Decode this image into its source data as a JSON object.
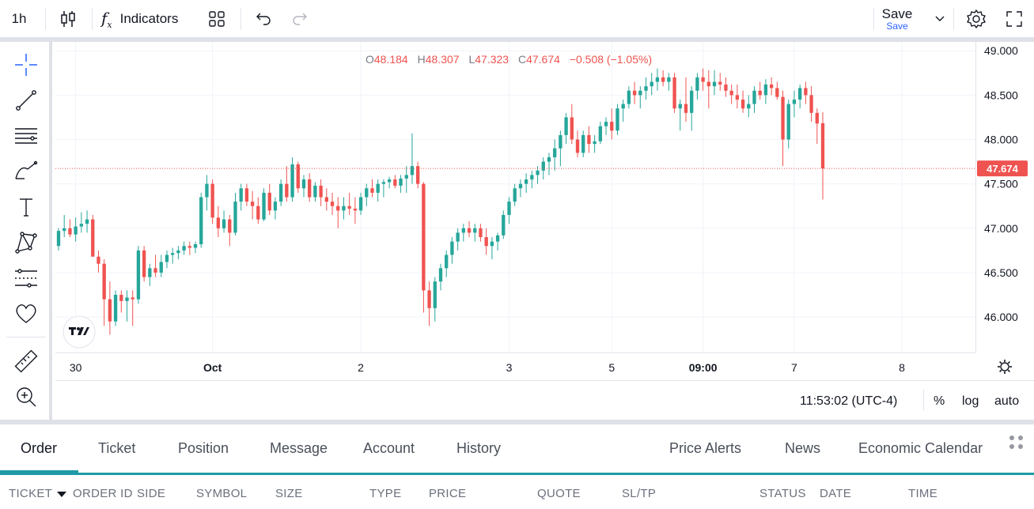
{
  "toolbar": {
    "interval": "1h",
    "indicators_label": "Indicators",
    "save_label": "Save",
    "save_sub": "Save"
  },
  "legend": {
    "o_label": "O",
    "o_value": "48.184",
    "h_label": "H",
    "h_value": "48.307",
    "l_label": "L",
    "l_value": "47.323",
    "c_label": "C",
    "c_value": "47.674",
    "change": "−0.508 (−1.05%)"
  },
  "price_scale": {
    "ticks": [
      "49.000",
      "48.500",
      "48.000",
      "47.500",
      "47.000",
      "46.500",
      "46.000"
    ],
    "last_price": "47.674"
  },
  "time_scale": {
    "ticks": [
      "30",
      "Oct",
      "2",
      "3",
      "5",
      "09:00",
      "7",
      "8"
    ]
  },
  "status": {
    "clock": "11:53:02 (UTC-4)",
    "percent": "%",
    "log": "log",
    "auto": "auto"
  },
  "tabs": [
    "Order",
    "Ticket",
    "Position",
    "Message",
    "Account",
    "History",
    "Price Alerts",
    "News",
    "Economic Calendar"
  ],
  "columns": [
    "TICKET",
    "ORDER ID",
    "SIDE",
    "SYMBOL",
    "SIZE",
    "TYPE",
    "PRICE",
    "QUOTE",
    "SL/TP",
    "STATUS",
    "DATE",
    "TIME"
  ],
  "colors": {
    "up": "#26a69a",
    "down": "#ef5350",
    "accent": "#1e9aa6",
    "grid": "#f0f3fa"
  },
  "chart_data": {
    "type": "candlestick",
    "ylim": [
      45.6,
      49.1
    ],
    "last": 47.674,
    "candles": [
      [
        46.8,
        47.0,
        46.75,
        46.97
      ],
      [
        46.97,
        47.15,
        46.9,
        47.0
      ],
      [
        47.0,
        47.1,
        46.9,
        46.93
      ],
      [
        46.93,
        47.12,
        46.85,
        47.02
      ],
      [
        47.02,
        47.18,
        46.95,
        47.05
      ],
      [
        47.05,
        47.2,
        46.95,
        47.1
      ],
      [
        47.1,
        47.15,
        46.7,
        46.68
      ],
      [
        46.68,
        46.75,
        46.5,
        46.6
      ],
      [
        46.6,
        46.65,
        45.9,
        46.2
      ],
      [
        46.2,
        46.4,
        45.8,
        45.95
      ],
      [
        45.95,
        46.3,
        45.9,
        46.25
      ],
      [
        46.25,
        46.3,
        46.05,
        46.18
      ],
      [
        46.18,
        46.3,
        45.95,
        46.22
      ],
      [
        46.22,
        46.3,
        45.9,
        46.2
      ],
      [
        46.2,
        46.8,
        46.15,
        46.75
      ],
      [
        46.75,
        46.8,
        46.4,
        46.45
      ],
      [
        46.45,
        46.6,
        46.35,
        46.55
      ],
      [
        46.55,
        46.7,
        46.45,
        46.5
      ],
      [
        46.5,
        46.7,
        46.45,
        46.62
      ],
      [
        46.62,
        46.75,
        46.55,
        46.7
      ],
      [
        46.7,
        46.78,
        46.6,
        46.72
      ],
      [
        46.72,
        46.8,
        46.65,
        46.75
      ],
      [
        46.75,
        46.85,
        46.7,
        46.8
      ],
      [
        46.8,
        46.85,
        46.7,
        46.78
      ],
      [
        46.78,
        46.85,
        46.72,
        46.82
      ],
      [
        46.82,
        47.4,
        46.78,
        47.35
      ],
      [
        47.35,
        47.6,
        47.2,
        47.5
      ],
      [
        47.5,
        47.55,
        47.05,
        47.12
      ],
      [
        47.12,
        47.25,
        46.9,
        47.0
      ],
      [
        47.0,
        47.2,
        46.95,
        47.1
      ],
      [
        47.1,
        47.15,
        46.8,
        46.95
      ],
      [
        46.95,
        47.4,
        46.92,
        47.3
      ],
      [
        47.3,
        47.5,
        47.2,
        47.45
      ],
      [
        47.45,
        47.5,
        47.25,
        47.3
      ],
      [
        47.3,
        47.42,
        47.1,
        47.25
      ],
      [
        47.25,
        47.35,
        47.05,
        47.1
      ],
      [
        47.1,
        47.45,
        47.08,
        47.4
      ],
      [
        47.4,
        47.5,
        47.15,
        47.2
      ],
      [
        47.2,
        47.35,
        47.1,
        47.3
      ],
      [
        47.3,
        47.55,
        47.25,
        47.5
      ],
      [
        47.5,
        47.7,
        47.3,
        47.35
      ],
      [
        47.35,
        47.8,
        47.3,
        47.72
      ],
      [
        47.72,
        47.75,
        47.4,
        47.45
      ],
      [
        47.45,
        47.6,
        47.35,
        47.55
      ],
      [
        47.55,
        47.62,
        47.3,
        47.35
      ],
      [
        47.35,
        47.52,
        47.3,
        47.48
      ],
      [
        47.48,
        47.55,
        47.25,
        47.35
      ],
      [
        47.35,
        47.45,
        47.2,
        47.3
      ],
      [
        47.3,
        47.4,
        47.15,
        47.25
      ],
      [
        47.25,
        47.35,
        47.0,
        47.2
      ],
      [
        47.2,
        47.35,
        47.1,
        47.25
      ],
      [
        47.25,
        47.4,
        47.15,
        47.22
      ],
      [
        47.22,
        47.35,
        47.05,
        47.2
      ],
      [
        47.2,
        47.4,
        47.15,
        47.35
      ],
      [
        47.35,
        47.5,
        47.25,
        47.45
      ],
      [
        47.45,
        47.55,
        47.35,
        47.4
      ],
      [
        47.4,
        47.55,
        47.3,
        47.5
      ],
      [
        47.5,
        47.55,
        47.35,
        47.52
      ],
      [
        47.52,
        47.58,
        47.45,
        47.55
      ],
      [
        47.55,
        47.6,
        47.45,
        47.48
      ],
      [
        47.48,
        47.6,
        47.4,
        47.56
      ],
      [
        47.56,
        47.7,
        47.4,
        47.6
      ],
      [
        47.6,
        48.07,
        47.5,
        47.7
      ],
      [
        47.7,
        47.75,
        47.45,
        47.5
      ],
      [
        47.5,
        47.52,
        46.05,
        46.3
      ],
      [
        46.3,
        46.4,
        45.9,
        46.1
      ],
      [
        46.1,
        46.45,
        45.95,
        46.4
      ],
      [
        46.4,
        46.6,
        46.3,
        46.55
      ],
      [
        46.55,
        46.75,
        46.45,
        46.7
      ],
      [
        46.7,
        46.9,
        46.6,
        46.85
      ],
      [
        46.85,
        47.0,
        46.75,
        46.95
      ],
      [
        46.95,
        47.05,
        46.85,
        47.0
      ],
      [
        47.0,
        47.08,
        46.9,
        46.95
      ],
      [
        46.95,
        47.05,
        46.85,
        47.0
      ],
      [
        47.0,
        47.05,
        46.85,
        46.9
      ],
      [
        46.9,
        47.0,
        46.7,
        46.8
      ],
      [
        46.8,
        46.9,
        46.65,
        46.85
      ],
      [
        46.85,
        46.95,
        46.75,
        46.92
      ],
      [
        46.92,
        47.2,
        46.88,
        47.15
      ],
      [
        47.15,
        47.35,
        47.05,
        47.3
      ],
      [
        47.3,
        47.5,
        47.25,
        47.45
      ],
      [
        47.45,
        47.55,
        47.35,
        47.5
      ],
      [
        47.5,
        47.62,
        47.4,
        47.55
      ],
      [
        47.55,
        47.65,
        47.45,
        47.6
      ],
      [
        47.6,
        47.7,
        47.5,
        47.65
      ],
      [
        47.65,
        47.8,
        47.55,
        47.75
      ],
      [
        47.75,
        47.85,
        47.6,
        47.8
      ],
      [
        47.8,
        48.0,
        47.65,
        47.9
      ],
      [
        47.9,
        48.1,
        47.7,
        48.05
      ],
      [
        48.05,
        48.3,
        47.95,
        48.25
      ],
      [
        48.25,
        48.4,
        47.95,
        48.0
      ],
      [
        48.0,
        48.1,
        47.8,
        47.85
      ],
      [
        47.85,
        48.1,
        47.8,
        48.05
      ],
      [
        48.05,
        48.15,
        47.85,
        47.95
      ],
      [
        47.95,
        48.05,
        47.85,
        47.98
      ],
      [
        47.98,
        48.2,
        47.95,
        48.15
      ],
      [
        48.15,
        48.25,
        48.05,
        48.2
      ],
      [
        48.2,
        48.35,
        48.0,
        48.1
      ],
      [
        48.1,
        48.4,
        48.05,
        48.35
      ],
      [
        48.35,
        48.45,
        48.2,
        48.4
      ],
      [
        48.4,
        48.6,
        48.35,
        48.55
      ],
      [
        48.55,
        48.65,
        48.4,
        48.5
      ],
      [
        48.5,
        48.6,
        48.35,
        48.55
      ],
      [
        48.55,
        48.7,
        48.45,
        48.6
      ],
      [
        48.6,
        48.75,
        48.5,
        48.65
      ],
      [
        48.65,
        48.8,
        48.55,
        48.7
      ],
      [
        48.7,
        48.78,
        48.6,
        48.65
      ],
      [
        48.65,
        48.75,
        48.55,
        48.7
      ],
      [
        48.7,
        48.75,
        48.3,
        48.35
      ],
      [
        48.35,
        48.45,
        48.1,
        48.4
      ],
      [
        48.4,
        48.7,
        48.2,
        48.3
      ],
      [
        48.3,
        48.6,
        48.1,
        48.55
      ],
      [
        48.55,
        48.75,
        48.45,
        48.7
      ],
      [
        48.7,
        48.8,
        48.55,
        48.65
      ],
      [
        48.65,
        48.78,
        48.35,
        48.6
      ],
      [
        48.6,
        48.78,
        48.5,
        48.65
      ],
      [
        48.65,
        48.75,
        48.55,
        48.62
      ],
      [
        48.62,
        48.7,
        48.48,
        48.55
      ],
      [
        48.55,
        48.62,
        48.4,
        48.5
      ],
      [
        48.5,
        48.62,
        48.35,
        48.45
      ],
      [
        48.45,
        48.55,
        48.3,
        48.35
      ],
      [
        48.35,
        48.5,
        48.25,
        48.4
      ],
      [
        48.4,
        48.6,
        48.3,
        48.55
      ],
      [
        48.55,
        48.65,
        48.45,
        48.5
      ],
      [
        48.5,
        48.68,
        48.4,
        48.62
      ],
      [
        48.62,
        48.7,
        48.5,
        48.58
      ],
      [
        48.58,
        48.65,
        48.45,
        48.48
      ],
      [
        48.48,
        48.55,
        47.7,
        48.0
      ],
      [
        48.0,
        48.45,
        47.9,
        48.4
      ],
      [
        48.4,
        48.55,
        48.25,
        48.45
      ],
      [
        48.45,
        48.62,
        48.35,
        48.58
      ],
      [
        48.58,
        48.65,
        48.4,
        48.5
      ],
      [
        48.5,
        48.6,
        48.2,
        48.3
      ],
      [
        48.3,
        48.35,
        47.95,
        48.18
      ],
      [
        48.184,
        48.307,
        47.323,
        47.674
      ]
    ]
  }
}
